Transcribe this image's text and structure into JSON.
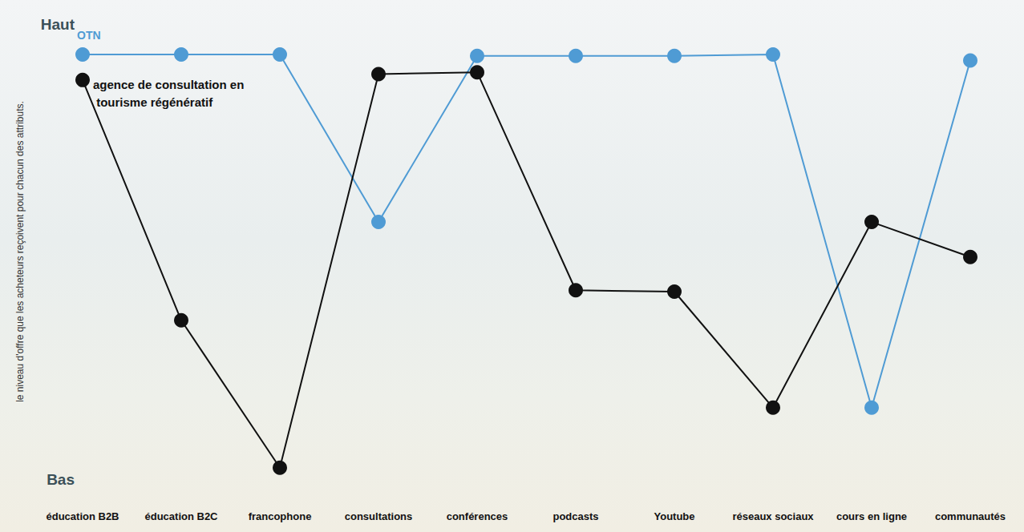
{
  "chart_data": {
    "type": "line",
    "y_label": "le niveau d'offre que les acheteurs reçoivent pour chacun des attributs.",
    "categories": [
      "éducation B2B",
      "éducation B2C",
      "francophone",
      "consultations",
      "conférences",
      "podcasts",
      "Youtube",
      "réseaux sociaux",
      "cours en ligne",
      "communautés"
    ],
    "series": [
      {
        "name": "OTN",
        "color": "#4f9bd4",
        "marker": "circle",
        "values": [
          9.33,
          9.33,
          9.33,
          5.65,
          9.3,
          9.3,
          9.3,
          9.33,
          1.57,
          9.2
        ]
      },
      {
        "name": "agence de consultation en tourisme régénératif",
        "color": "#111111",
        "marker": "circle",
        "values": [
          8.77,
          3.49,
          0.25,
          8.9,
          8.94,
          4.15,
          4.12,
          1.57,
          5.65,
          4.88
        ]
      }
    ],
    "ylim": [
      0,
      10
    ],
    "yticks": [
      {
        "value": 0,
        "label": "Bas"
      },
      {
        "value": 10,
        "label": "Haut"
      }
    ],
    "grid": false
  }
}
